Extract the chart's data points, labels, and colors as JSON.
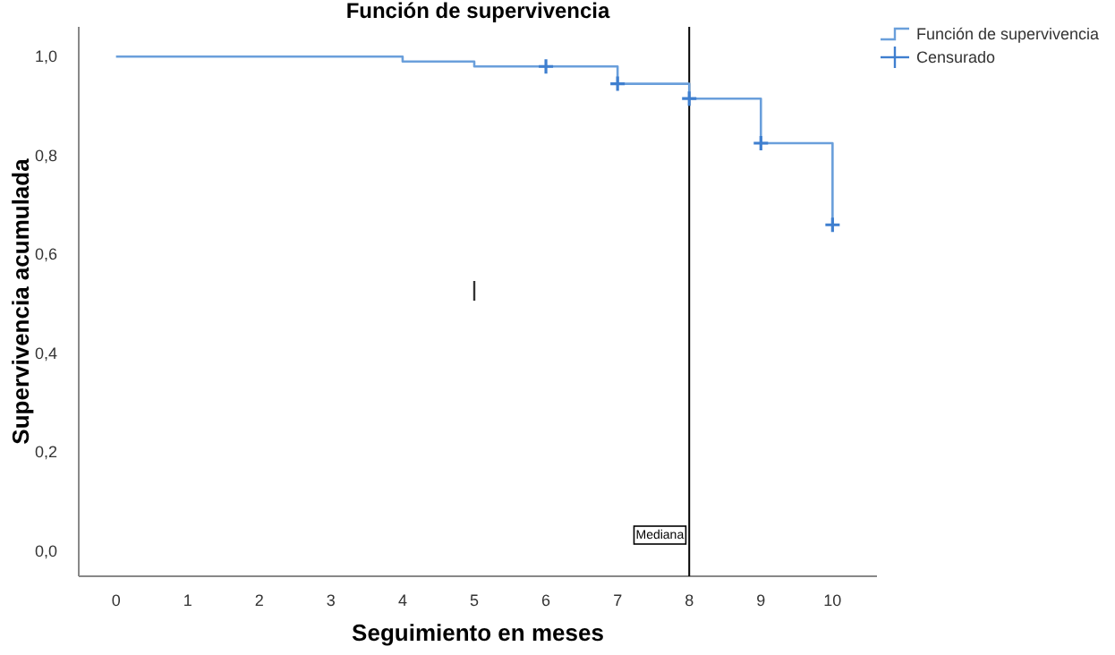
{
  "chart_data": {
    "type": "step",
    "title": "Función de supervivencia",
    "xlabel": "Seguimiento en meses",
    "ylabel": "Supervivencia acumulada",
    "xlim": [
      -0.52,
      10.62
    ],
    "xticks": [
      0,
      1,
      2,
      3,
      4,
      5,
      6,
      7,
      8,
      9,
      10
    ],
    "ylim": [
      -0.05,
      1.06
    ],
    "yticks": [
      {
        "value": 0,
        "label": "0,0"
      },
      {
        "value": 0.2,
        "label": "0,2"
      },
      {
        "value": 0.4,
        "label": "0,4"
      },
      {
        "value": 0.6,
        "label": "0,6"
      },
      {
        "value": 0.8,
        "label": "0,8"
      },
      {
        "value": 1,
        "label": "1,0"
      }
    ],
    "series": [
      {
        "name": "Función de supervivencia",
        "color": "#6a9fdb",
        "x": [
          0,
          4,
          5,
          7,
          8,
          9,
          10
        ],
        "values": [
          1,
          0.99,
          0.98,
          0.945,
          0.915,
          0.825,
          0.66
        ]
      },
      {
        "name": "Censurado",
        "type": "scatter",
        "marker": "cross",
        "color": "#3f7fcf",
        "x": [
          6,
          7,
          8,
          9,
          10
        ],
        "values": [
          0.98,
          0.945,
          0.915,
          0.825,
          0.66
        ]
      }
    ],
    "ref_lines": [
      {
        "axis": "x",
        "value": 8,
        "label": "Mediana",
        "color": "#000000"
      }
    ],
    "grid": false,
    "legend": "top right"
  }
}
